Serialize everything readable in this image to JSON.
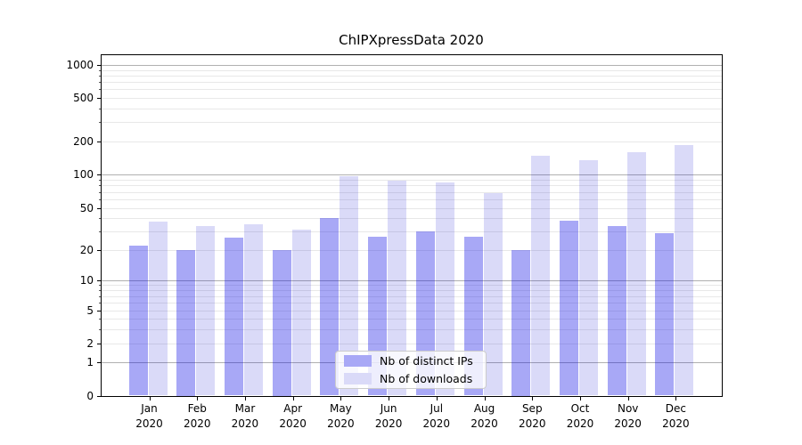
{
  "chart_data": {
    "type": "bar",
    "title": "ChIPXpressData 2020",
    "categories": [
      "Jan",
      "Feb",
      "Mar",
      "Apr",
      "May",
      "Jun",
      "Jul",
      "Aug",
      "Sep",
      "Oct",
      "Nov",
      "Dec"
    ],
    "category_subline": "2020",
    "series": [
      {
        "name": "Nb of distinct IPs",
        "bar_color": "rgba(0,0,230,0.34)",
        "swatch_color": "#a8a8f6",
        "values": [
          22,
          20,
          26,
          20,
          40,
          27,
          30,
          27,
          20,
          38,
          34,
          29
        ]
      },
      {
        "name": "Nb of downloads",
        "bar_color": "rgba(0,0,210,0.145)",
        "swatch_color": "#dadaf8",
        "values": [
          37,
          34,
          35,
          31,
          97,
          88,
          85,
          68,
          150,
          135,
          162,
          188
        ]
      }
    ],
    "yscale": "symlog",
    "yticks": [
      0,
      1,
      2,
      5,
      10,
      20,
      50,
      100,
      200,
      500,
      1000
    ],
    "ylim": [
      0,
      1300
    ],
    "grid": {
      "major_ticks": [
        1,
        10,
        100,
        1000
      ],
      "major_color": "#b0b0b0",
      "minor_color": "#e8e8e8"
    },
    "legend_position": "lower center",
    "axis_color": "#000000",
    "background": "#ffffff"
  }
}
